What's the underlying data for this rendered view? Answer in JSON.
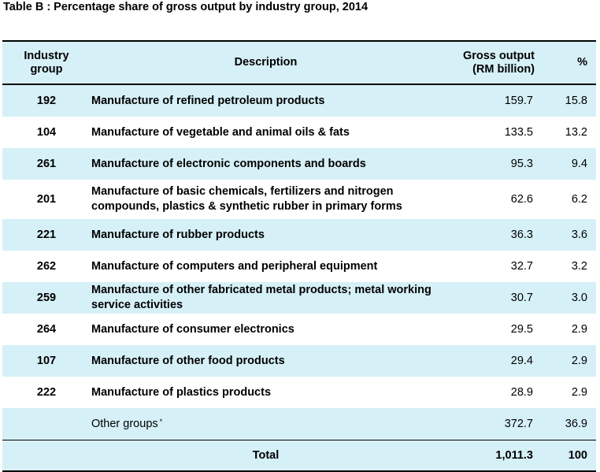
{
  "title": "Table B : Percentage share of gross output by industry group, 2014",
  "header": {
    "col_group_line1": "Industry",
    "col_group_line2": "group",
    "col_desc": "Description",
    "col_output_line1": "Gross output",
    "col_output_line2": "(RM billion)",
    "col_pct": "%"
  },
  "rows": [
    {
      "code": "192",
      "desc": "Manufacture of refined petroleum products",
      "output": "159.7",
      "pct": "15.8"
    },
    {
      "code": "104",
      "desc": "Manufacture of vegetable and animal oils & fats",
      "output": "133.5",
      "pct": "13.2"
    },
    {
      "code": "261",
      "desc": "Manufacture of electronic components and boards",
      "output": "95.3",
      "pct": "9.4"
    },
    {
      "code": "201",
      "desc": "Manufacture of basic chemicals, fertilizers and nitrogen compounds, plastics & synthetic rubber in primary forms",
      "output": "62.6",
      "pct": "6.2"
    },
    {
      "code": "221",
      "desc": "Manufacture of rubber products",
      "output": "36.3",
      "pct": "3.6"
    },
    {
      "code": "262",
      "desc": "Manufacture of computers and peripheral equipment",
      "output": "32.7",
      "pct": "3.2"
    },
    {
      "code": "259",
      "desc": "Manufacture of other fabricated metal products; metal working service activities",
      "output": "30.7",
      "pct": "3.0"
    },
    {
      "code": "264",
      "desc": "Manufacture of consumer electronics",
      "output": "29.5",
      "pct": "2.9"
    },
    {
      "code": "107",
      "desc": "Manufacture of other food products",
      "output": "29.4",
      "pct": "2.9"
    },
    {
      "code": "222",
      "desc": "Manufacture of plastics products",
      "output": "28.9",
      "pct": "2.9"
    }
  ],
  "other": {
    "desc": "Other groups",
    "mark": "*",
    "output": "372.7",
    "pct": "36.9"
  },
  "total": {
    "label": "Total",
    "output": "1,011.3",
    "pct": "100"
  },
  "colors": {
    "shade": "#d6f0f7"
  }
}
